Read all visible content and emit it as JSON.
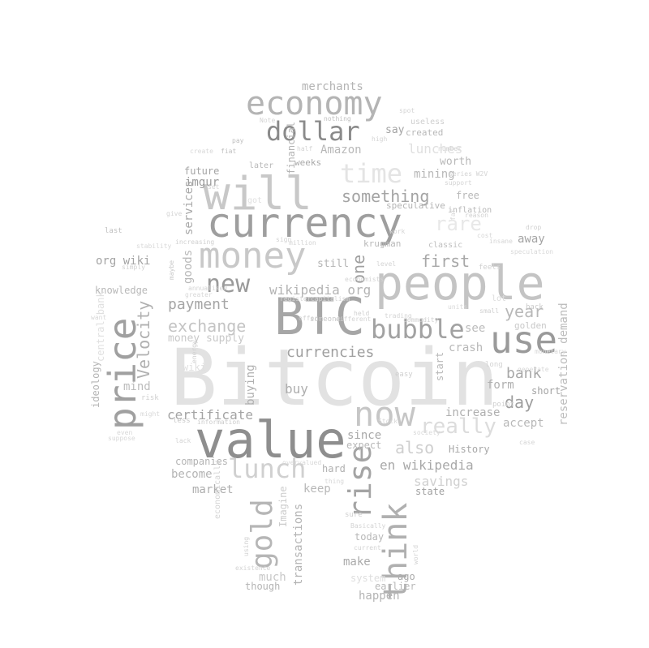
{
  "word_cloud": {
    "words": [
      {
        "text": "Bitcoin",
        "color": "#e2e2e2"
      },
      {
        "text": "BTC",
        "color": "#a6a6a6"
      },
      {
        "text": "value",
        "color": "#8e8e8e"
      },
      {
        "text": "people",
        "color": "#c4c4c4"
      },
      {
        "text": "currency",
        "color": "#9e9e9e"
      },
      {
        "text": "price",
        "color": "#a0a0a0"
      },
      {
        "text": "will",
        "color": "#c8c8c8"
      },
      {
        "text": "economy",
        "color": "#b4b4b4"
      },
      {
        "text": "money",
        "color": "#c8c8c8"
      },
      {
        "text": "dollar",
        "color": "#8a8a8a"
      },
      {
        "text": "use",
        "color": "#9a9a9a"
      },
      {
        "text": "bubble",
        "color": "#a2a2a2"
      },
      {
        "text": "now",
        "color": "#c6c6c6"
      },
      {
        "text": "think",
        "color": "#b0b0b0"
      },
      {
        "text": "rise",
        "color": "#a4a4a4"
      },
      {
        "text": "gold",
        "color": "#b6b6b6"
      },
      {
        "text": "lunch",
        "color": "#d0d0d0"
      },
      {
        "text": "new",
        "color": "#9a9a9a"
      },
      {
        "text": "time",
        "color": "#e4e4e4"
      },
      {
        "text": "really",
        "color": "#dcdcdc"
      },
      {
        "text": "something",
        "color": "#a4a4a4"
      },
      {
        "text": "currencies",
        "color": "#a0a0a0"
      },
      {
        "text": "exchange",
        "color": "#c4c4c4"
      },
      {
        "text": "payment",
        "color": "#a6a6a6"
      },
      {
        "text": "Velocity",
        "color": "#b0b0b0"
      },
      {
        "text": "first",
        "color": "#a8a8a8"
      },
      {
        "text": "bank",
        "color": "#a8a8a8"
      },
      {
        "text": "day",
        "color": "#9e9e9e"
      },
      {
        "text": "year",
        "color": "#b8b8b8"
      },
      {
        "text": "also",
        "color": "#cfcfcf"
      },
      {
        "text": "one",
        "color": "#a0a0a0"
      },
      {
        "text": "wikipedia org",
        "color": "#b4b4b4"
      },
      {
        "text": "en wikipedia",
        "color": "#a8a8a8"
      },
      {
        "text": "certificate",
        "color": "#a4a4a4"
      },
      {
        "text": "Amazon",
        "color": "#b8b8b8"
      },
      {
        "text": "rare",
        "color": "#e8e8e8"
      },
      {
        "text": "org wiki",
        "color": "#a4a4a4"
      },
      {
        "text": "merchants",
        "color": "#b4b4b4"
      },
      {
        "text": "away",
        "color": "#a4a4a4"
      },
      {
        "text": "reservation demand",
        "color": "#bcbcbc"
      },
      {
        "text": "lunches",
        "color": "#e0e0e0"
      },
      {
        "text": "imgur",
        "color": "#9c9c9c"
      },
      {
        "text": "future",
        "color": "#a4a4a4"
      },
      {
        "text": "services",
        "color": "#a8a8a8"
      },
      {
        "text": "goods",
        "color": "#b8b8b8"
      },
      {
        "text": "mining",
        "color": "#b8b8b8"
      },
      {
        "text": "worth",
        "color": "#b8b8b8"
      },
      {
        "text": "free",
        "color": "#b8b8b8"
      },
      {
        "text": "savings",
        "color": "#d0d0d0"
      },
      {
        "text": "market",
        "color": "#aeaeae"
      },
      {
        "text": "become",
        "color": "#b4b4b4"
      },
      {
        "text": "companies",
        "color": "#b4b4b4"
      },
      {
        "text": "buy",
        "color": "#aeaeae"
      },
      {
        "text": "buying",
        "color": "#b0b0b0"
      },
      {
        "text": "increase",
        "color": "#b0b0b0"
      },
      {
        "text": "accept",
        "color": "#b8b8b8"
      },
      {
        "text": "short",
        "color": "#a4a4a4"
      },
      {
        "text": "crash",
        "color": "#b8b8b8"
      },
      {
        "text": "see",
        "color": "#bcbcbc"
      },
      {
        "text": "start",
        "color": "#b8b8b8"
      },
      {
        "text": "form",
        "color": "#b0b0b0"
      },
      {
        "text": "History",
        "color": "#a8a8a8"
      },
      {
        "text": "state",
        "color": "#a0a0a0"
      },
      {
        "text": "since",
        "color": "#a8a8a8"
      },
      {
        "text": "expect",
        "color": "#b8b8b8"
      },
      {
        "text": "keep",
        "color": "#b8b8b8"
      },
      {
        "text": "hard",
        "color": "#b0b0b0"
      },
      {
        "text": "make",
        "color": "#aaaaaa"
      },
      {
        "text": "today",
        "color": "#b8b8b8"
      },
      {
        "text": "much",
        "color": "#c8c8c8"
      },
      {
        "text": "though",
        "color": "#b4b4b4"
      },
      {
        "text": "happen",
        "color": "#b4b4b4"
      },
      {
        "text": "earlier",
        "color": "#b8b8b8"
      },
      {
        "text": "ago",
        "color": "#aaaaaa"
      },
      {
        "text": "system",
        "color": "#dedede"
      },
      {
        "text": "transactions",
        "color": "#b4b4b4"
      },
      {
        "text": "Imagine",
        "color": "#cccccc"
      },
      {
        "text": "mind",
        "color": "#bcbcbc"
      },
      {
        "text": "knowledge",
        "color": "#b8b8b8"
      },
      {
        "text": "ideology",
        "color": "#b4b4b4"
      },
      {
        "text": "money supply",
        "color": "#c8c8c8"
      },
      {
        "text": "still",
        "color": "#b4b4b4"
      },
      {
        "text": "say",
        "color": "#a4a4a4"
      },
      {
        "text": "created",
        "color": "#b8b8b8"
      },
      {
        "text": "weeks",
        "color": "#a8a8a8"
      },
      {
        "text": "later",
        "color": "#b8b8b8"
      },
      {
        "text": "financial",
        "color": "#b4b4b4"
      },
      {
        "text": "krugman",
        "color": "#b8b8b8"
      },
      {
        "text": "speculative",
        "color": "#b4b4b4"
      },
      {
        "text": "classic",
        "color": "#c0c0c0"
      },
      {
        "text": "inflation",
        "color": "#b8b8b8"
      },
      {
        "text": "useless",
        "color": "#cfcfcf"
      },
      {
        "text": "nothing",
        "color": "#c0c0c0"
      },
      {
        "text": "fiat",
        "color": "#c0c0c0"
      },
      {
        "text": "pay",
        "color": "#c0c0c0"
      },
      {
        "text": "last",
        "color": "#c0c0c0"
      },
      {
        "text": "simply",
        "color": "#d0d0d0"
      },
      {
        "text": "maybe",
        "color": "#c8c8c8"
      },
      {
        "text": "energy",
        "color": "#d0d0d0"
      },
      {
        "text": "economically",
        "color": "#d4d4d4"
      },
      {
        "text": "someone",
        "color": "#c8c8c8"
      },
      {
        "text": "different",
        "color": "#d4d4d4"
      },
      {
        "text": "golden",
        "color": "#c8c8c8"
      },
      {
        "text": "back",
        "color": "#c8c8c8"
      },
      {
        "text": "long",
        "color": "#d4d4d4"
      },
      {
        "text": "point",
        "color": "#d0d0d0"
      },
      {
        "text": "reason",
        "color": "#d0d0d0"
      },
      {
        "text": "drop",
        "color": "#d0d0d0"
      },
      {
        "text": "insane",
        "color": "#d4d4d4"
      },
      {
        "text": "feels",
        "color": "#d0d0d0"
      },
      {
        "text": "small",
        "color": "#d0d0d0"
      },
      {
        "text": "risk",
        "color": "#d0d0d0"
      },
      {
        "text": "less",
        "color": "#c8c8c8"
      },
      {
        "text": "information",
        "color": "#cccccc"
      },
      {
        "text": "lack",
        "color": "#d4d4d4"
      },
      {
        "text": "case",
        "color": "#d4d4d4"
      },
      {
        "text": "sure",
        "color": "#d0d0d0"
      },
      {
        "text": "Basically",
        "color": "#d4d4d4"
      },
      {
        "text": "current",
        "color": "#d4d4d4"
      },
      {
        "text": "using",
        "color": "#d0d0d0"
      },
      {
        "text": "existence",
        "color": "#d4d4d4"
      },
      {
        "text": "world",
        "color": "#d4d4d4"
      },
      {
        "text": "held",
        "color": "#d0d0d0"
      },
      {
        "text": "trading",
        "color": "#d4d4d4"
      },
      {
        "text": "offer",
        "color": "#d0d0d0"
      },
      {
        "text": "commodity",
        "color": "#d0d0d0"
      },
      {
        "text": "easy",
        "color": "#d0d0d0"
      },
      {
        "text": "register",
        "color": "#d4d4d4"
      },
      {
        "text": "capitalism",
        "color": "#d4d4d4"
      },
      {
        "text": "annualised",
        "color": "#d4d4d4"
      },
      {
        "text": "increasing",
        "color": "#d0d0d0"
      },
      {
        "text": "give",
        "color": "#d4d4d4"
      },
      {
        "text": "sign",
        "color": "#d4d4d4"
      },
      {
        "text": "million",
        "color": "#d4d4d4"
      },
      {
        "text": "level",
        "color": "#d4d4d4"
      },
      {
        "text": "economists",
        "color": "#d4d4d4"
      },
      {
        "text": "series W2V",
        "color": "#d4d4d4"
      },
      {
        "text": "number",
        "color": "#d4d4d4"
      },
      {
        "text": "half",
        "color": "#d4d4d4"
      },
      {
        "text": "spot",
        "color": "#d4d4d4"
      },
      {
        "text": "high",
        "color": "#d4d4d4"
      },
      {
        "text": "Note",
        "color": "#d4d4d4"
      },
      {
        "text": "work",
        "color": "#d4d4d4"
      },
      {
        "text": "support",
        "color": "#d4d4d4"
      },
      {
        "text": "create",
        "color": "#d8d8d8"
      },
      {
        "text": "set",
        "color": "#d4d4d4"
      },
      {
        "text": "monetary",
        "color": "#d8d8d8"
      },
      {
        "text": "speculation",
        "color": "#d8d8d8"
      },
      {
        "text": "want",
        "color": "#d8d8d8"
      },
      {
        "text": "generate",
        "color": "#d8d8d8"
      },
      {
        "text": "Stock",
        "color": "#d8d8d8"
      },
      {
        "text": "society",
        "color": "#d8d8d8"
      },
      {
        "text": "overvalued",
        "color": "#d8d8d8"
      },
      {
        "text": "even",
        "color": "#d8d8d8"
      },
      {
        "text": "suppose",
        "color": "#d8d8d8"
      },
      {
        "text": "might",
        "color": "#d8d8d8"
      },
      {
        "text": "thing",
        "color": "#d8d8d8"
      },
      {
        "text": "far",
        "color": "#d8d8d8"
      },
      {
        "text": "stability",
        "color": "#d8d8d8"
      },
      {
        "text": "units",
        "color": "#d8d8d8"
      },
      {
        "text": "cost",
        "color": "#d8d8d8"
      },
      {
        "text": "greater",
        "color": "#d8d8d8"
      },
      {
        "text": "central bank",
        "color": "#e0e0e0"
      },
      {
        "text": "wiki",
        "color": "#e0e0e0"
      },
      {
        "text": "got",
        "color": "#e0e0e0"
      },
      {
        "text": "lot",
        "color": "#dcdcdc"
      }
    ]
  }
}
